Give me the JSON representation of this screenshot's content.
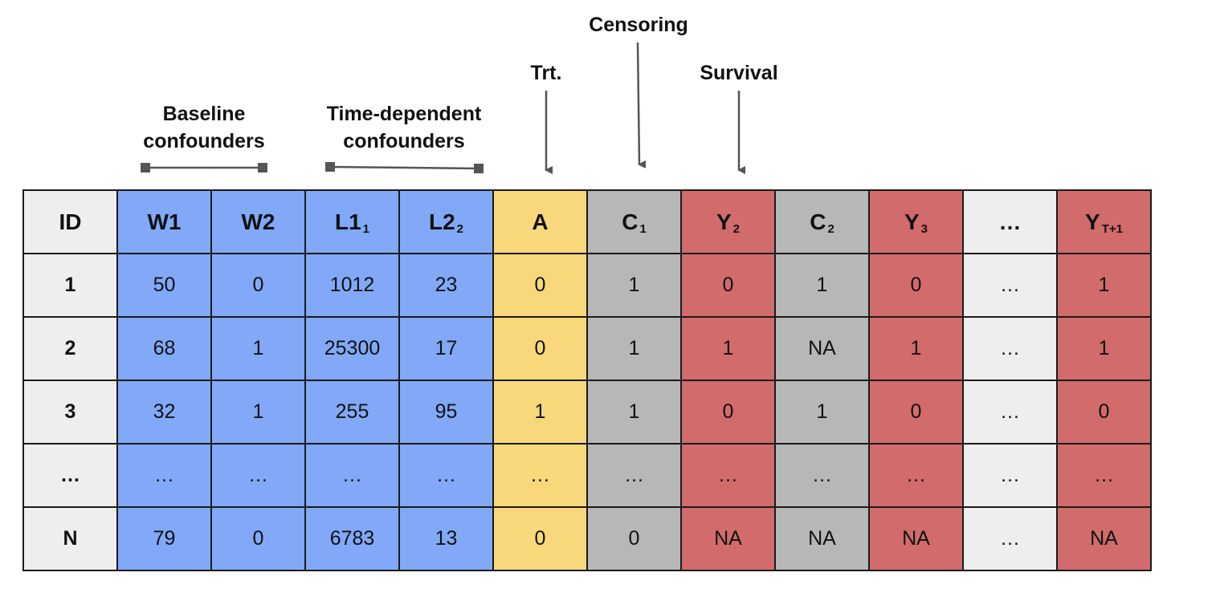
{
  "annotations": {
    "baseline": {
      "line1": "Baseline",
      "line2": "confounders"
    },
    "time_dependent": {
      "line1": "Time-dependent",
      "line2": "confounders"
    },
    "treatment": "Trt.",
    "censoring": "Censoring",
    "survival": "Survival"
  },
  "table": {
    "headers": [
      {
        "main": "ID",
        "sub": ""
      },
      {
        "main": "W1",
        "sub": ""
      },
      {
        "main": "W2",
        "sub": ""
      },
      {
        "main": "L1",
        "sub": "1"
      },
      {
        "main": "L2",
        "sub": "2"
      },
      {
        "main": "A",
        "sub": ""
      },
      {
        "main": "C",
        "sub": "1"
      },
      {
        "main": "Y",
        "sub": "2"
      },
      {
        "main": "C",
        "sub": "2"
      },
      {
        "main": "Y",
        "sub": "3"
      },
      {
        "main": "…",
        "sub": ""
      },
      {
        "main": "Y",
        "sub": "T+1"
      }
    ],
    "rows": [
      [
        "1",
        "50",
        "0",
        "1012",
        "23",
        "0",
        "1",
        "0",
        "1",
        "0",
        "…",
        "1"
      ],
      [
        "2",
        "68",
        "1",
        "25300",
        "17",
        "0",
        "1",
        "1",
        "NA",
        "1",
        "…",
        "1"
      ],
      [
        "3",
        "32",
        "1",
        "255",
        "95",
        "1",
        "1",
        "0",
        "1",
        "0",
        "…",
        "0"
      ],
      [
        "…",
        "…",
        "…",
        "…",
        "…",
        "…",
        "…",
        "…",
        "…",
        "…",
        "…",
        "…"
      ],
      [
        "N",
        "79",
        "0",
        "6783",
        "13",
        "0",
        "0",
        "NA",
        "NA",
        "NA",
        "…",
        "NA"
      ]
    ]
  },
  "colors": {
    "id_column": "#eeeeee",
    "confounders": "#81a9f8",
    "treatment": "#f8d87a",
    "censoring": "#b7b7b7",
    "survival": "#d26b6b",
    "ellipsis_column": "#eeeeee"
  }
}
